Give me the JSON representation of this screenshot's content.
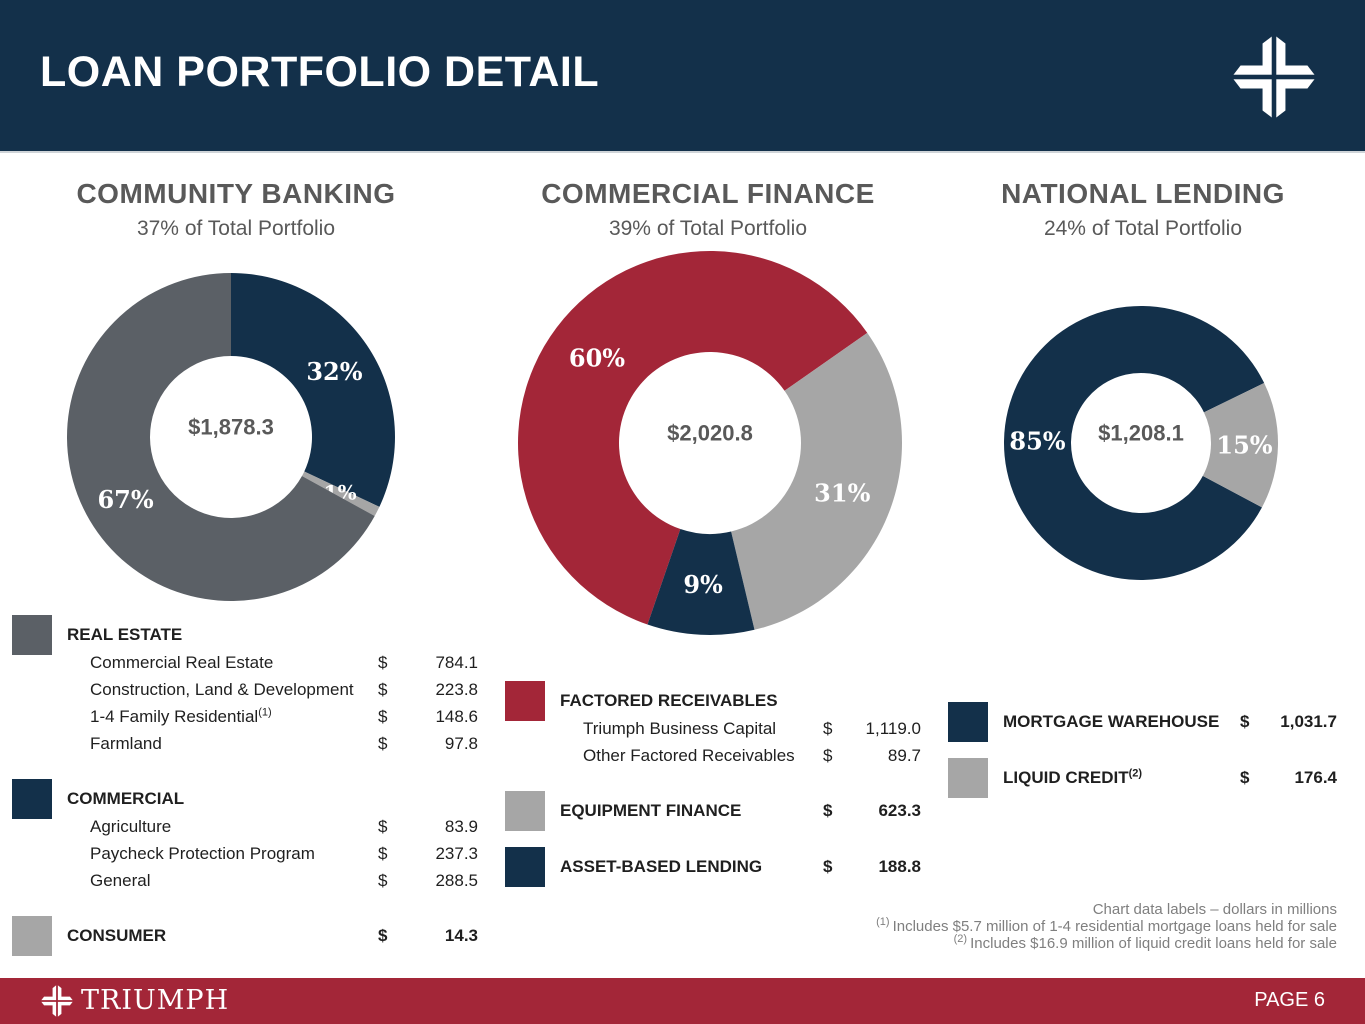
{
  "header": {
    "title": "LOAN PORTFOLIO DETAIL"
  },
  "colors": {
    "navy": "#13304a",
    "dark_gray": "#5b6066",
    "light_gray": "#a6a6a6",
    "red": "#a32638",
    "heading_gray": "#595959",
    "center_label_gray": "#595959",
    "footnote_gray": "#7f7f7f",
    "footer_red": "#a32638"
  },
  "icons": {
    "header_logo": "triumph-cross-icon",
    "footer_logo": "triumph-cross-icon"
  },
  "chart_data": [
    {
      "type": "pie",
      "title": "COMMUNITY BANKING",
      "subtitle": "37% of Total Portfolio",
      "center_label": "$1,878.3",
      "units": "dollars in millions",
      "start_angle": 0,
      "legend_position": "below",
      "slices": [
        {
          "name": "Commercial",
          "pct": 32,
          "label": "32%",
          "color": "navy"
        },
        {
          "name": "Consumer",
          "pct": 1,
          "label": "1%",
          "color": "light_gray"
        },
        {
          "name": "Real Estate",
          "pct": 67,
          "label": "67%",
          "color": "dark_gray"
        }
      ]
    },
    {
      "type": "pie",
      "title": "COMMERCIAL FINANCE",
      "subtitle": "39% of Total Portfolio",
      "center_label": "$2,020.8",
      "units": "dollars in millions",
      "start_angle": 199,
      "legend_position": "below",
      "slices": [
        {
          "name": "Factored Receivables",
          "pct": 60,
          "label": "60%",
          "color": "red"
        },
        {
          "name": "Equipment Finance",
          "pct": 31,
          "label": "31%",
          "color": "light_gray"
        },
        {
          "name": "Asset-Based Lending",
          "pct": 9,
          "label": "9%",
          "color": "navy"
        }
      ]
    },
    {
      "type": "pie",
      "title": "NATIONAL LENDING",
      "subtitle": "24% of Total Portfolio",
      "center_label": "$1,208.1",
      "units": "dollars in millions",
      "start_angle": 118,
      "legend_position": "below",
      "slices": [
        {
          "name": "Mortgage Warehouse",
          "pct": 85,
          "label": "85%",
          "color": "navy"
        },
        {
          "name": "Liquid Credit",
          "pct": 15,
          "label": "15%",
          "color": "light_gray"
        }
      ]
    }
  ],
  "legends": [
    {
      "rows": [
        {
          "style": "group",
          "swatch": "dark_gray",
          "label": "REAL ESTATE"
        },
        {
          "style": "item",
          "label": "Commercial Real Estate",
          "dollar": "$",
          "value": "784.1"
        },
        {
          "style": "item",
          "label": "Construction, Land & Development",
          "dollar": "$",
          "value": "223.8"
        },
        {
          "style": "item",
          "label": "1-4 Family Residential",
          "sup": "(1)",
          "dollar": "$",
          "value": "148.6"
        },
        {
          "style": "item",
          "label": "Farmland",
          "dollar": "$",
          "value": "97.8"
        },
        {
          "style": "group",
          "swatch": "navy",
          "label": "COMMERCIAL",
          "gap": true
        },
        {
          "style": "item",
          "label": "Agriculture",
          "dollar": "$",
          "value": "83.9"
        },
        {
          "style": "item",
          "label": "Paycheck Protection Program",
          "dollar": "$",
          "value": "237.3"
        },
        {
          "style": "item",
          "label": "General",
          "dollar": "$",
          "value": "288.5"
        },
        {
          "style": "group",
          "swatch": "light_gray",
          "label": "CONSUMER",
          "dollar": "$",
          "value": "14.3",
          "gap": true
        }
      ]
    },
    {
      "rows": [
        {
          "style": "group",
          "swatch": "red",
          "label": "FACTORED RECEIVABLES"
        },
        {
          "style": "item",
          "label": "Triumph Business Capital",
          "dollar": "$",
          "value": "1,119.0"
        },
        {
          "style": "item",
          "label": "Other Factored Receivables",
          "dollar": "$",
          "value": "89.7"
        },
        {
          "style": "group",
          "swatch": "light_gray",
          "label": "EQUIPMENT FINANCE",
          "dollar": "$",
          "value": "623.3",
          "gap": true
        },
        {
          "style": "group",
          "swatch": "navy",
          "label": "ASSET-BASED LENDING",
          "dollar": "$",
          "value": "188.8",
          "gap": true
        }
      ]
    },
    {
      "rows": [
        {
          "style": "group",
          "swatch": "navy",
          "label": "MORTGAGE WAREHOUSE",
          "dollar": "$",
          "value": "1,031.7"
        },
        {
          "style": "group",
          "swatch": "light_gray",
          "label": "LIQUID CREDIT",
          "sup": "(2)",
          "dollar": "$",
          "value": "176.4",
          "gap": true
        }
      ]
    }
  ],
  "footnotes": [
    {
      "sup": "",
      "text": "Chart data labels – dollars in millions"
    },
    {
      "sup": "(1)",
      "text": "Includes $5.7 million of 1-4 residential mortgage loans held for sale"
    },
    {
      "sup": "(2)",
      "text": "Includes $16.9 million of liquid credit loans held for sale"
    }
  ],
  "footer": {
    "brand": "TRIUMPH",
    "page": "PAGE 6"
  }
}
